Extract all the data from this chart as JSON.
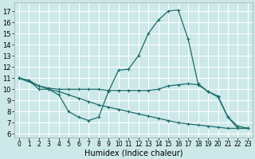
{
  "xlabel": "Humidex (Indice chaleur)",
  "bg_color": "#cce8e8",
  "grid_color": "#ffffff",
  "line_color": "#1e6b6b",
  "ylim": [
    5.7,
    17.8
  ],
  "xlim": [
    -0.5,
    23.5
  ],
  "yticks": [
    6,
    7,
    8,
    9,
    10,
    11,
    12,
    13,
    14,
    15,
    16,
    17
  ],
  "xticks": [
    0,
    1,
    2,
    3,
    4,
    5,
    6,
    7,
    8,
    9,
    10,
    11,
    12,
    13,
    14,
    15,
    16,
    17,
    18,
    19,
    20,
    21,
    22,
    23
  ],
  "line1_x": [
    0,
    1,
    2,
    3,
    4,
    5,
    6,
    7,
    8,
    9,
    10,
    11,
    12,
    13,
    14,
    15,
    16,
    17,
    18,
    19,
    20,
    21,
    22,
    23
  ],
  "line1_y": [
    11.0,
    10.8,
    10.0,
    10.0,
    9.5,
    8.0,
    7.5,
    7.2,
    7.5,
    9.8,
    11.7,
    11.8,
    13.0,
    15.0,
    16.2,
    17.0,
    17.1,
    14.5,
    10.5,
    9.8,
    9.4,
    7.5,
    6.5,
    6.5
  ],
  "line2_x": [
    0,
    1,
    2,
    3,
    4,
    5,
    6,
    7,
    8,
    9,
    10,
    11,
    12,
    13,
    14,
    15,
    16,
    17,
    18,
    19,
    20,
    21,
    22,
    23
  ],
  "line2_y": [
    11.0,
    10.8,
    10.3,
    10.1,
    10.0,
    10.0,
    10.0,
    10.0,
    10.0,
    9.9,
    9.9,
    9.9,
    9.9,
    9.9,
    10.0,
    10.3,
    10.4,
    10.5,
    10.4,
    9.8,
    9.3,
    7.5,
    6.7,
    6.5
  ],
  "line3_x": [
    0,
    2,
    3,
    4,
    5,
    6,
    7,
    8,
    9,
    10,
    11,
    12,
    13,
    14,
    15,
    16,
    17,
    18,
    19,
    20,
    21,
    22,
    23
  ],
  "line3_y": [
    11.0,
    10.3,
    10.0,
    9.8,
    9.5,
    9.2,
    8.9,
    8.6,
    8.4,
    8.2,
    8.0,
    7.8,
    7.6,
    7.4,
    7.2,
    7.0,
    6.9,
    6.8,
    6.7,
    6.6,
    6.5,
    6.5,
    6.5
  ]
}
